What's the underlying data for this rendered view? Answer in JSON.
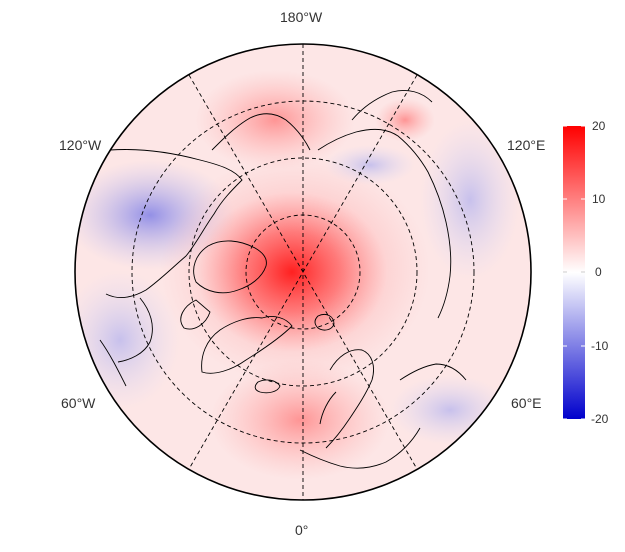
{
  "map": {
    "projection": "north polar stereographic",
    "longitude_labels": {
      "top": "180°W",
      "bottom": "0°",
      "upper_left": "120°W",
      "upper_right": "120°E",
      "lower_left": "60°W",
      "lower_right": "60°E"
    },
    "graticule": "dashed",
    "coastlines": true,
    "country_borders": true
  },
  "colorbar": {
    "ticks": [
      "20",
      "10",
      "0",
      "-10",
      "-20"
    ],
    "range": [
      -20,
      20
    ],
    "colors": {
      "high": "#ff0000",
      "mid": "#ffffff",
      "low": "#0000cc"
    }
  }
}
